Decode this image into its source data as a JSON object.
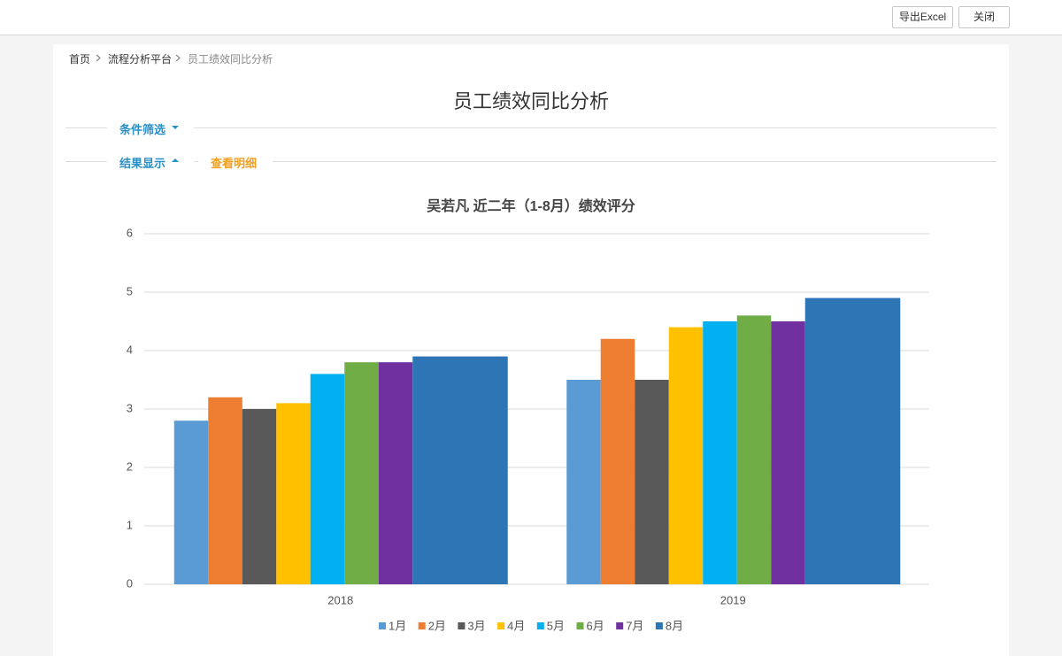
{
  "header": {
    "buttons": [
      "导出Excel",
      "关闭"
    ]
  },
  "breadcrumb": [
    "首页",
    "流程分析平台",
    "员工绩效同比分析"
  ],
  "title": "员工绩效同比分析",
  "filters": {
    "condition": "条件筛选",
    "result": "结果显示",
    "detail": "查看明细"
  },
  "chart_data": {
    "type": "bar",
    "title": "吴若凡  近二年（1-8月）绩效评分",
    "categories": [
      "2018",
      "2019"
    ],
    "series": [
      {
        "name": "1月",
        "color": "#5b9bd5",
        "values": [
          2.8,
          3.5
        ]
      },
      {
        "name": "2月",
        "color": "#ed7d31",
        "values": [
          3.2,
          4.2
        ]
      },
      {
        "name": "3月",
        "color": "#595959",
        "values": [
          3.0,
          3.5
        ]
      },
      {
        "name": "4月",
        "color": "#ffc000",
        "values": [
          3.1,
          4.4
        ]
      },
      {
        "name": "5月",
        "color": "#00b0f0",
        "values": [
          3.6,
          4.5
        ]
      },
      {
        "name": "6月",
        "color": "#70ad47",
        "values": [
          3.8,
          4.6
        ]
      },
      {
        "name": "7月",
        "color": "#7030a0",
        "values": [
          3.8,
          4.5
        ]
      },
      {
        "name": "8月",
        "color": "#2e75b6",
        "values": [
          3.9,
          4.9
        ]
      }
    ],
    "ylim": [
      0,
      6
    ],
    "yticks": [
      0,
      1,
      2,
      3,
      4,
      5,
      6
    ],
    "grid": true,
    "legend": "bottom"
  }
}
